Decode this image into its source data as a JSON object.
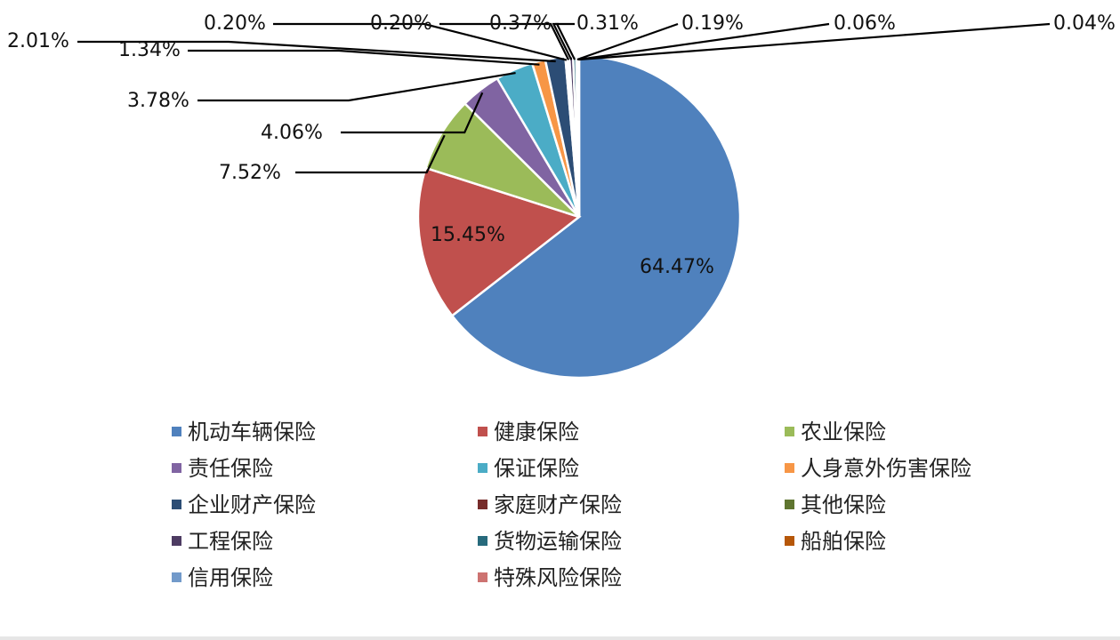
{
  "chart_data": {
    "type": "pie",
    "title": "",
    "legend_position": "bottom",
    "slices": [
      {
        "name": "机动车辆保险",
        "value": 64.47,
        "label": "64.47%",
        "color": "#4F81BD"
      },
      {
        "name": "健康保险",
        "value": 15.45,
        "label": "15.45%",
        "color": "#C0504D"
      },
      {
        "name": "农业保险",
        "value": 7.52,
        "label": "7.52%",
        "color": "#9BBB59"
      },
      {
        "name": "责任保险",
        "value": 4.06,
        "label": "4.06%",
        "color": "#8064A2"
      },
      {
        "name": "保证保险",
        "value": 3.78,
        "label": "3.78%",
        "color": "#4BACC6"
      },
      {
        "name": "人身意外伤害保险",
        "value": 1.34,
        "label": "1.34%",
        "color": "#F79646"
      },
      {
        "name": "企业财产保险",
        "value": 2.01,
        "label": "2.01%",
        "color": "#2C4D75"
      },
      {
        "name": "家庭财产保险",
        "value": 0.2,
        "label": "0.20%",
        "color": "#772C2A"
      },
      {
        "name": "其他保险",
        "value": 0.2,
        "label": "0.20%",
        "color": "#5F7530"
      },
      {
        "name": "工程保险",
        "value": 0.37,
        "label": "0.37%",
        "color": "#4D3B62"
      },
      {
        "name": "货物运输保险",
        "value": 0.31,
        "label": "0.31%",
        "color": "#276A7C"
      },
      {
        "name": "船舶保险",
        "value": 0.19,
        "label": "0.19%",
        "color": "#B65708"
      },
      {
        "name": "信用保险",
        "value": 0.06,
        "label": "0.06%",
        "color": "#729ACA"
      },
      {
        "name": "特殊风险保险",
        "value": 0.04,
        "label": "0.04%",
        "color": "#CD7371"
      }
    ]
  }
}
